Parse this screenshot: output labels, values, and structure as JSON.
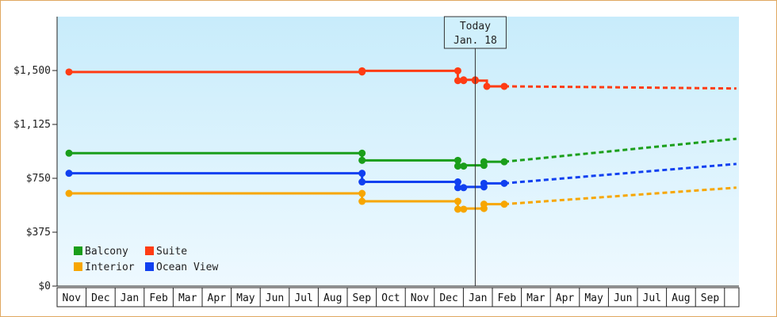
{
  "chart_data": {
    "type": "line",
    "title": "",
    "xlabel": "",
    "ylabel": "",
    "ylim": [
      0,
      1875
    ],
    "yticks": [
      0,
      375,
      750,
      1125,
      1500
    ],
    "ytick_labels": [
      "$0",
      "$375",
      "$750",
      "$1,125",
      "$1,500"
    ],
    "months": [
      "Nov",
      "Dec",
      "Jan",
      "Feb",
      "Mar",
      "Apr",
      "May",
      "Jun",
      "Jul",
      "Aug",
      "Sep",
      "Oct",
      "Nov",
      "Dec",
      "Jan",
      "Feb",
      "Mar",
      "Apr",
      "May",
      "Jun",
      "Jul",
      "Aug",
      "Sep"
    ],
    "today_index": 14,
    "today": {
      "line1": "Today",
      "line2": "Jan. 18"
    },
    "grid": false,
    "background_gradient": [
      "#c8ecfb",
      "#eef9ff"
    ],
    "legend_placement": "bottom-left",
    "legend": [
      {
        "name": "Balcony",
        "color": "#1a9e1a"
      },
      {
        "name": "Suite",
        "color": "#ff3c14"
      },
      {
        "name": "Interior",
        "color": "#f7a600"
      },
      {
        "name": "Ocean View",
        "color": "#1040f0"
      }
    ],
    "series": [
      {
        "name": "Suite",
        "color": "#ff3c14",
        "history": [
          [
            0,
            1490
          ],
          [
            10.1,
            1490
          ],
          [
            10.1,
            1498
          ],
          [
            13.4,
            1498
          ],
          [
            13.4,
            1430
          ],
          [
            13.6,
            1430
          ],
          [
            13.6,
            1435
          ],
          [
            14,
            1435
          ],
          [
            14,
            1430
          ],
          [
            14.4,
            1430
          ],
          [
            14.4,
            1390
          ],
          [
            15,
            1390
          ]
        ],
        "markers": [
          [
            0,
            1490
          ],
          [
            10.1,
            1490
          ],
          [
            10.1,
            1498
          ],
          [
            13.4,
            1498
          ],
          [
            13.4,
            1430
          ],
          [
            13.6,
            1430
          ],
          [
            13.6,
            1435
          ],
          [
            14,
            1435
          ],
          [
            14,
            1430
          ],
          [
            14.4,
            1390
          ],
          [
            15,
            1390
          ]
        ],
        "forecast": [
          [
            15,
            1390
          ],
          [
            18,
            1385
          ],
          [
            23,
            1375
          ]
        ]
      },
      {
        "name": "Balcony",
        "color": "#1a9e1a",
        "history": [
          [
            0,
            925
          ],
          [
            10.1,
            925
          ],
          [
            10.1,
            875
          ],
          [
            13.4,
            875
          ],
          [
            13.4,
            835
          ],
          [
            13.6,
            835
          ],
          [
            13.6,
            840
          ],
          [
            14.3,
            840
          ],
          [
            14.3,
            865
          ],
          [
            15,
            865
          ]
        ],
        "markers": [
          [
            0,
            925
          ],
          [
            10.1,
            925
          ],
          [
            10.1,
            875
          ],
          [
            13.4,
            875
          ],
          [
            13.4,
            835
          ],
          [
            13.6,
            835
          ],
          [
            14.3,
            840
          ],
          [
            14.3,
            865
          ],
          [
            15,
            865
          ]
        ],
        "forecast": [
          [
            15,
            865
          ],
          [
            23,
            1025
          ]
        ]
      },
      {
        "name": "Ocean View",
        "color": "#1040f0",
        "history": [
          [
            0,
            785
          ],
          [
            10.1,
            785
          ],
          [
            10.1,
            725
          ],
          [
            13.4,
            725
          ],
          [
            13.4,
            685
          ],
          [
            13.6,
            685
          ],
          [
            13.6,
            690
          ],
          [
            14.3,
            690
          ],
          [
            14.3,
            715
          ],
          [
            15,
            715
          ]
        ],
        "markers": [
          [
            0,
            785
          ],
          [
            10.1,
            785
          ],
          [
            10.1,
            725
          ],
          [
            13.4,
            725
          ],
          [
            13.4,
            685
          ],
          [
            13.6,
            685
          ],
          [
            14.3,
            690
          ],
          [
            14.3,
            715
          ],
          [
            15,
            715
          ]
        ],
        "forecast": [
          [
            15,
            715
          ],
          [
            23,
            850
          ]
        ]
      },
      {
        "name": "Interior",
        "color": "#f7a600",
        "history": [
          [
            0,
            645
          ],
          [
            10.1,
            645
          ],
          [
            10.1,
            590
          ],
          [
            13.4,
            590
          ],
          [
            13.4,
            535
          ],
          [
            13.6,
            535
          ],
          [
            13.6,
            540
          ],
          [
            14.3,
            540
          ],
          [
            14.3,
            570
          ],
          [
            15,
            570
          ]
        ],
        "markers": [
          [
            0,
            645
          ],
          [
            10.1,
            645
          ],
          [
            10.1,
            590
          ],
          [
            13.4,
            590
          ],
          [
            13.4,
            535
          ],
          [
            13.6,
            535
          ],
          [
            14.3,
            540
          ],
          [
            14.3,
            570
          ],
          [
            15,
            570
          ]
        ],
        "forecast": [
          [
            15,
            570
          ],
          [
            23,
            685
          ]
        ]
      }
    ]
  }
}
